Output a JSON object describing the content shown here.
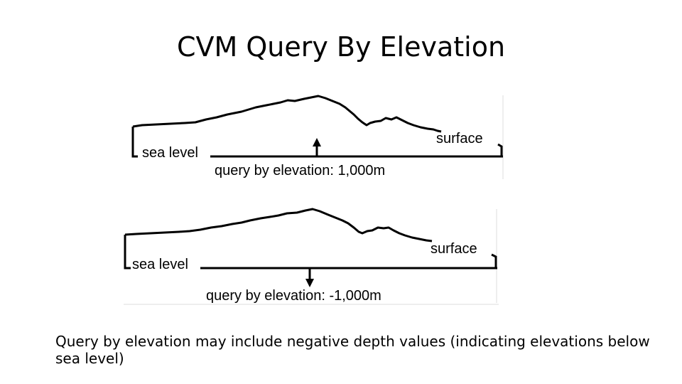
{
  "title": "CVM Query By Elevation",
  "diagrams": [
    {
      "sea_level_label": "sea level",
      "surface_label": "surface",
      "query_label": "query by elevation: 1,000m",
      "direction": "up"
    },
    {
      "sea_level_label": "sea level",
      "surface_label": "surface",
      "query_label": "query by elevation: -1,000m",
      "direction": "down"
    }
  ],
  "caption": "Query by elevation may include negative depth values (indicating elevations below sea level)"
}
